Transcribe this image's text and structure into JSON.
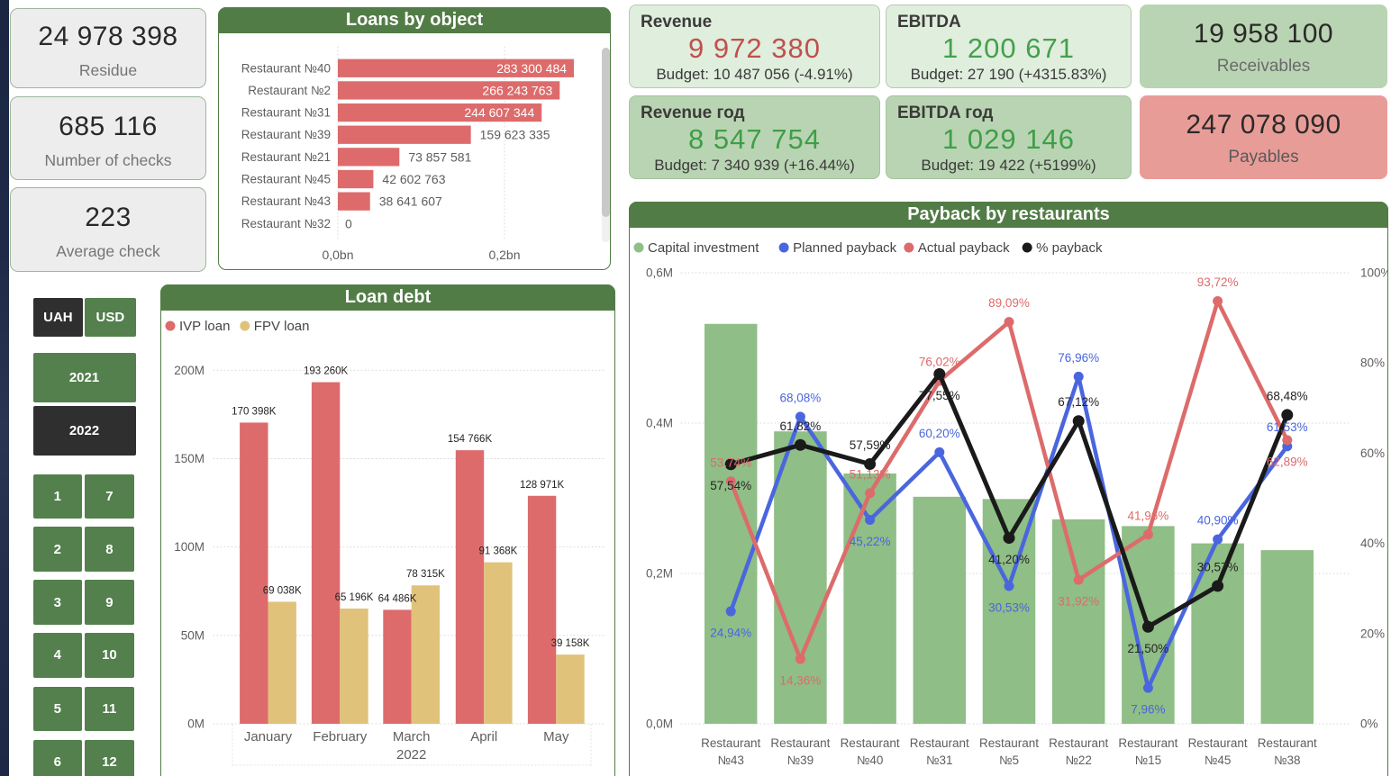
{
  "colors": {
    "accent_green": "#527c46",
    "button_green": "#53804d",
    "button_dark": "#2f2f2f",
    "bar_red": "#dd6b6b",
    "bar_tan": "#e1c27b",
    "bar_green": "#8fbe86",
    "line_blue": "#4a66de",
    "line_red": "#dd6b6b",
    "line_black": "#1a1a1a",
    "axis_text": "#605e5c",
    "value_red": "#c0504d",
    "value_green": "#44a04c",
    "card_light_green": "#dfeedd",
    "card_green": "#b9d4b3",
    "card_salmon": "#e89c98",
    "card_gray": "#ededed"
  },
  "left_kpis": [
    {
      "value": "24 978 398",
      "label": "Residue"
    },
    {
      "value": "685 116",
      "label": "Number of checks"
    },
    {
      "value": "223",
      "label": "Average check"
    }
  ],
  "filters": {
    "currency": [
      {
        "label": "UAH",
        "selected": true
      },
      {
        "label": "USD",
        "selected": false
      }
    ],
    "years": [
      {
        "label": "2021",
        "selected": false
      },
      {
        "label": "2022",
        "selected": true
      }
    ],
    "months": [
      "1",
      "7",
      "2",
      "8",
      "3",
      "9",
      "4",
      "10",
      "5",
      "11",
      "6",
      "12"
    ]
  },
  "kpi_cards": {
    "revenue": {
      "title": "Revenue",
      "value": "9 972 380",
      "budget": "Budget: 10 487 056 (-4.91%)"
    },
    "ebitda": {
      "title": "EBITDA",
      "value": "1 200 671",
      "budget": "Budget: 27 190 (+4315.83%)"
    },
    "receivables": {
      "value": "19 958 100",
      "label": "Receivables"
    },
    "revenue_year": {
      "title": "Revenue год",
      "value": "8 547 754",
      "budget": "Budget: 7 340 939 (+16.44%)"
    },
    "ebitda_year": {
      "title": "EBITDA год",
      "value": "1 029 146",
      "budget": "Budget: 19 422 (+5199%)"
    },
    "payables": {
      "value": "247 078 090",
      "label": "Payables"
    }
  },
  "chart_data": [
    {
      "id": "loans",
      "type": "bar",
      "orientation": "horizontal",
      "title": "Loans by object",
      "categories": [
        "Restaurant №40",
        "Restaurant №2",
        "Restaurant №31",
        "Restaurant №39",
        "Restaurant №21",
        "Restaurant №45",
        "Restaurant №43",
        "Restaurant №32"
      ],
      "values": [
        283300484,
        266243763,
        244607344,
        159623335,
        73857581,
        42602763,
        38641607,
        0
      ],
      "value_labels": [
        "283 300 484",
        "266 243 763",
        "244 607 344",
        "159 623 335",
        "73 857 581",
        "42 602 763",
        "38 641 607",
        "0"
      ],
      "xlabel": "",
      "ylabel": "",
      "x_ticks": [
        {
          "label": "0,0bn",
          "value": 0
        },
        {
          "label": "0,2bn",
          "value": 200000000
        }
      ],
      "xlim": [
        0,
        315000000
      ],
      "grid": "vertical-dotted",
      "scrollbar": true
    },
    {
      "id": "loan_debt",
      "type": "bar",
      "title": "Loan debt",
      "categories": [
        "January",
        "February",
        "March",
        "April",
        "May"
      ],
      "axis_year_label": "2022",
      "series": [
        {
          "name": "IVP loan",
          "color": "#dd6b6b",
          "values": [
            170398000,
            193260000,
            64486000,
            154766000,
            128971000
          ],
          "value_labels": [
            "170 398K",
            "193 260K",
            "64 486K",
            "154 766K",
            "128 971K"
          ]
        },
        {
          "name": "FPV loan",
          "color": "#e1c27b",
          "values": [
            69038000,
            65196000,
            78315000,
            91368000,
            39158000
          ],
          "value_labels": [
            "69 038K",
            "65 196K",
            "78 315K",
            "91 368K",
            "39 158K"
          ]
        }
      ],
      "y_ticks": [
        {
          "label": "0M",
          "value": 0
        },
        {
          "label": "50M",
          "value": 50000000
        },
        {
          "label": "100M",
          "value": 100000000
        },
        {
          "label": "150M",
          "value": 150000000
        },
        {
          "label": "200M",
          "value": 200000000
        }
      ],
      "ylim": [
        0,
        204000000
      ],
      "grid": "horizontal-dotted",
      "legend_position": "top-left"
    },
    {
      "id": "payback",
      "type": "combo",
      "title": "Payback by restaurants",
      "categories": [
        "Restaurant\n№43",
        "Restaurant\n№39",
        "Restaurant\n№40",
        "Restaurant\n№31",
        "Restaurant\n№5",
        "Restaurant\n№22",
        "Restaurant\n№15",
        "Restaurant\n№45",
        "Restaurant\n№38"
      ],
      "bar_series": {
        "name": "Capital investment",
        "color": "#8fbe86",
        "axis": "left",
        "values_M": [
          0.532,
          0.389,
          0.333,
          0.302,
          0.299,
          0.272,
          0.263,
          0.24,
          0.231
        ]
      },
      "line_series": [
        {
          "name": "Planned payback",
          "color": "#4a66de",
          "axis": "right",
          "values_pct": [
            24.94,
            68.08,
            45.22,
            60.2,
            30.53,
            76.96,
            7.96,
            40.9,
            61.53
          ],
          "value_labels": [
            "24,94%",
            "68,08%",
            "45,22%",
            "60,20%",
            "30,53%",
            "76,96%",
            "7,96%",
            "40,90%",
            "61,53%"
          ],
          "label_side": [
            "below",
            "above",
            "below",
            "above",
            "below",
            "above",
            "below",
            "above",
            "above"
          ]
        },
        {
          "name": "Actual payback",
          "color": "#dd6b6b",
          "axis": "right",
          "values_pct": [
            53.74,
            14.36,
            51.13,
            76.02,
            89.09,
            31.92,
            41.96,
            93.72,
            62.89
          ],
          "value_labels": [
            "53,74%",
            "14,36%",
            "51,13%",
            "76,02%",
            "89,09%",
            "31,92%",
            "41,96%",
            "93,72%",
            "62,89%"
          ],
          "label_side": [
            "above",
            "below",
            "above",
            "above",
            "above",
            "below",
            "above",
            "above",
            "below"
          ]
        },
        {
          "name": "% payback",
          "color": "#1a1a1a",
          "axis": "right",
          "values_pct": [
            57.54,
            61.82,
            57.59,
            77.55,
            41.2,
            67.12,
            21.5,
            30.57,
            68.48
          ],
          "value_labels": [
            "57,54%",
            "61,82%",
            "57,59%",
            "77,55%",
            "41,20%",
            "67,12%",
            "21,50%",
            "30,57%",
            "68,48%"
          ],
          "label_side": [
            "below",
            "above",
            "above",
            "below",
            "below",
            "above",
            "below",
            "above",
            "above"
          ]
        }
      ],
      "left_ticks": [
        {
          "label": "0,0M",
          "value": 0
        },
        {
          "label": "0,2M",
          "value": 0.2
        },
        {
          "label": "0,4M",
          "value": 0.4
        },
        {
          "label": "0,6M",
          "value": 0.6
        }
      ],
      "right_ticks": [
        {
          "label": "0%",
          "value": 0
        },
        {
          "label": "20%",
          "value": 20
        },
        {
          "label": "40%",
          "value": 40
        },
        {
          "label": "60%",
          "value": 60
        },
        {
          "label": "80%",
          "value": 80
        },
        {
          "label": "100%",
          "value": 100
        }
      ],
      "left_max": 0.6,
      "right_max": 100,
      "grid": "horizontal-dotted",
      "legend_position": "top-left"
    }
  ]
}
